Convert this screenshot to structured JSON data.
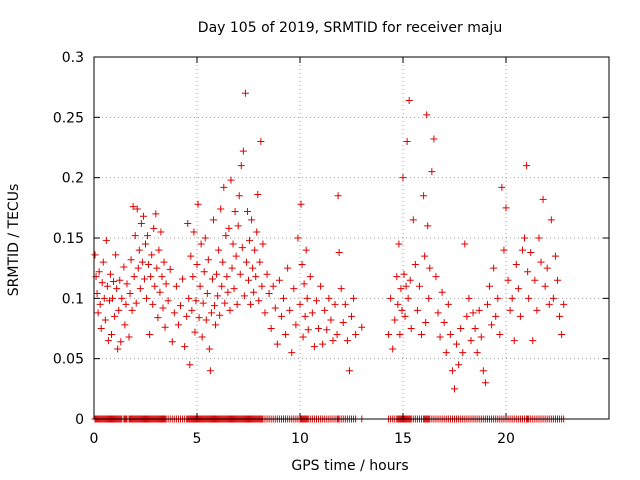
{
  "chart_data": {
    "type": "scatter",
    "title": "Day 105 of 2019, SRMTID for receiver maju",
    "xlabel": "GPS time / hours",
    "ylabel": "SRMTID / TECUs",
    "xlim": [
      0,
      25
    ],
    "ylim": [
      0,
      0.3
    ],
    "xticks": [
      0,
      5,
      10,
      15,
      20
    ],
    "xtick_labels": [
      "0",
      "5",
      "10",
      "15",
      "20"
    ],
    "yticks": [
      0,
      0.05,
      0.1,
      0.15,
      0.2,
      0.25,
      0.3
    ],
    "ytick_labels": [
      "0",
      "0.05",
      "0.1",
      "0.15",
      "0.2",
      "0.25",
      "0.3"
    ],
    "grid": true,
    "marker": "+",
    "series": [
      {
        "name": "SRMTID",
        "color": "#e00000",
        "points": [
          [
            0.05,
            0.136
          ],
          [
            0.1,
            0.118
          ],
          [
            0.15,
            0.104
          ],
          [
            0.2,
            0.088
          ],
          [
            0.25,
            0.122
          ],
          [
            0.3,
            0.095
          ],
          [
            0.35,
            0.075
          ],
          [
            0.4,
            0.113
          ],
          [
            0.45,
            0.13
          ],
          [
            0.5,
            0.1
          ],
          [
            0.55,
            0.082
          ],
          [
            0.6,
            0.148
          ],
          [
            0.65,
            0.11
          ],
          [
            0.7,
            0.065
          ],
          [
            0.75,
            0.098
          ],
          [
            0.8,
            0.12
          ],
          [
            0.85,
            0.07
          ],
          [
            0.9,
            0.1
          ],
          [
            0.95,
            0.114
          ],
          [
            1.0,
            0.085
          ],
          [
            1.05,
            0.136
          ],
          [
            1.1,
            0.108
          ],
          [
            1.15,
            0.058
          ],
          [
            1.2,
            0.09
          ],
          [
            1.25,
            0.115
          ],
          [
            1.3,
            0.064
          ],
          [
            1.35,
            0.1
          ],
          [
            1.45,
            0.126
          ],
          [
            1.5,
            0.078
          ],
          [
            1.55,
            0.095
          ],
          [
            1.6,
            0.112
          ],
          [
            1.7,
            0.068
          ],
          [
            1.75,
            0.104
          ],
          [
            1.8,
            0.132
          ],
          [
            1.85,
            0.09
          ],
          [
            1.9,
            0.176
          ],
          [
            1.95,
            0.118
          ],
          [
            2.0,
            0.152
          ],
          [
            2.05,
            0.096
          ],
          [
            2.1,
            0.174
          ],
          [
            2.15,
            0.125
          ],
          [
            2.2,
            0.14
          ],
          [
            2.25,
            0.108
          ],
          [
            2.3,
            0.162
          ],
          [
            2.35,
            0.13
          ],
          [
            2.4,
            0.168
          ],
          [
            2.45,
            0.116
          ],
          [
            2.5,
            0.145
          ],
          [
            2.55,
            0.1
          ],
          [
            2.6,
            0.152
          ],
          [
            2.65,
            0.128
          ],
          [
            2.7,
            0.07
          ],
          [
            2.75,
            0.118
          ],
          [
            2.8,
            0.136
          ],
          [
            2.85,
            0.095
          ],
          [
            2.9,
            0.158
          ],
          [
            2.95,
            0.11
          ],
          [
            3.0,
            0.17
          ],
          [
            3.05,
            0.125
          ],
          [
            3.1,
            0.084
          ],
          [
            3.15,
            0.14
          ],
          [
            3.2,
            0.105
          ],
          [
            3.25,
            0.155
          ],
          [
            3.3,
            0.118
          ],
          [
            3.35,
            0.092
          ],
          [
            3.4,
            0.13
          ],
          [
            3.45,
            0.076
          ],
          [
            3.5,
            0.112
          ],
          [
            3.6,
            0.098
          ],
          [
            3.7,
            0.124
          ],
          [
            3.8,
            0.064
          ],
          [
            3.9,
            0.088
          ],
          [
            4.0,
            0.11
          ],
          [
            4.1,
            0.078
          ],
          [
            4.2,
            0.094
          ],
          [
            4.3,
            0.116
          ],
          [
            4.4,
            0.06
          ],
          [
            4.5,
            0.085
          ],
          [
            4.55,
            0.162
          ],
          [
            4.6,
            0.1
          ],
          [
            4.65,
            0.045
          ],
          [
            4.7,
            0.135
          ],
          [
            4.75,
            0.09
          ],
          [
            4.8,
            0.118
          ],
          [
            4.85,
            0.155
          ],
          [
            4.9,
            0.072
          ],
          [
            4.95,
            0.098
          ],
          [
            5.0,
            0.128
          ],
          [
            5.05,
            0.178
          ],
          [
            5.1,
            0.084
          ],
          [
            5.15,
            0.11
          ],
          [
            5.2,
            0.145
          ],
          [
            5.25,
            0.068
          ],
          [
            5.3,
            0.096
          ],
          [
            5.35,
            0.122
          ],
          [
            5.4,
            0.15
          ],
          [
            5.45,
            0.082
          ],
          [
            5.5,
            0.104
          ],
          [
            5.55,
            0.132
          ],
          [
            5.6,
            0.058
          ],
          [
            5.65,
            0.04
          ],
          [
            5.7,
            0.088
          ],
          [
            5.75,
            0.116
          ],
          [
            5.8,
            0.165
          ],
          [
            5.85,
            0.094
          ],
          [
            5.9,
            0.078
          ],
          [
            5.95,
            0.12
          ],
          [
            6.0,
            0.102
          ],
          [
            6.05,
            0.14
          ],
          [
            6.1,
            0.086
          ],
          [
            6.15,
            0.174
          ],
          [
            6.2,
            0.11
          ],
          [
            6.25,
            0.13
          ],
          [
            6.3,
            0.192
          ],
          [
            6.35,
            0.096
          ],
          [
            6.4,
            0.152
          ],
          [
            6.45,
            0.118
          ],
          [
            6.5,
            0.105
          ],
          [
            6.55,
            0.158
          ],
          [
            6.6,
            0.09
          ],
          [
            6.65,
            0.198
          ],
          [
            6.7,
            0.125
          ],
          [
            6.75,
            0.145
          ],
          [
            6.8,
            0.108
          ],
          [
            6.85,
            0.172
          ],
          [
            6.9,
            0.135
          ],
          [
            6.95,
            0.095
          ],
          [
            7.0,
            0.16
          ],
          [
            7.05,
            0.185
          ],
          [
            7.1,
            0.12
          ],
          [
            7.15,
            0.21
          ],
          [
            7.2,
            0.142
          ],
          [
            7.25,
            0.222
          ],
          [
            7.3,
            0.102
          ],
          [
            7.35,
            0.27
          ],
          [
            7.4,
            0.13
          ],
          [
            7.45,
            0.172
          ],
          [
            7.5,
            0.115
          ],
          [
            7.55,
            0.148
          ],
          [
            7.6,
            0.095
          ],
          [
            7.65,
            0.165
          ],
          [
            7.7,
            0.125
          ],
          [
            7.75,
            0.105
          ],
          [
            7.8,
            0.14
          ],
          [
            7.85,
            0.118
          ],
          [
            7.9,
            0.155
          ],
          [
            7.95,
            0.186
          ],
          [
            8.0,
            0.098
          ],
          [
            8.05,
            0.13
          ],
          [
            8.1,
            0.23
          ],
          [
            8.15,
            0.11
          ],
          [
            8.2,
            0.145
          ],
          [
            8.3,
            0.088
          ],
          [
            8.4,
            0.12
          ],
          [
            8.5,
            0.104
          ],
          [
            8.6,
            0.075
          ],
          [
            8.7,
            0.11
          ],
          [
            8.8,
            0.092
          ],
          [
            8.9,
            0.062
          ],
          [
            9.0,
            0.115
          ],
          [
            9.1,
            0.085
          ],
          [
            9.2,
            0.1
          ],
          [
            9.3,
            0.07
          ],
          [
            9.4,
            0.125
          ],
          [
            9.5,
            0.09
          ],
          [
            9.6,
            0.055
          ],
          [
            9.7,
            0.108
          ],
          [
            9.8,
            0.078
          ],
          [
            9.9,
            0.15
          ],
          [
            10.0,
            0.095
          ],
          [
            10.05,
            0.178
          ],
          [
            10.1,
            0.128
          ],
          [
            10.15,
            0.068
          ],
          [
            10.2,
            0.112
          ],
          [
            10.25,
            0.085
          ],
          [
            10.3,
            0.14
          ],
          [
            10.35,
            0.1
          ],
          [
            10.4,
            0.074
          ],
          [
            10.5,
            0.118
          ],
          [
            10.6,
            0.088
          ],
          [
            10.7,
            0.06
          ],
          [
            10.8,
            0.098
          ],
          [
            10.9,
            0.075
          ],
          [
            11.0,
            0.11
          ],
          [
            11.1,
            0.062
          ],
          [
            11.2,
            0.09
          ],
          [
            11.3,
            0.074
          ],
          [
            11.4,
            0.1
          ],
          [
            11.5,
            0.082
          ],
          [
            11.6,
            0.065
          ],
          [
            11.7,
            0.095
          ],
          [
            11.8,
            0.07
          ],
          [
            11.85,
            0.185
          ],
          [
            11.9,
            0.138
          ],
          [
            12.0,
            0.108
          ],
          [
            12.1,
            0.08
          ],
          [
            12.2,
            0.095
          ],
          [
            12.3,
            0.065
          ],
          [
            12.4,
            0.04
          ],
          [
            12.5,
            0.085
          ],
          [
            12.6,
            0.1
          ],
          [
            12.7,
            0.07
          ],
          [
            13.0,
            0.076
          ],
          [
            14.3,
            0.07
          ],
          [
            14.4,
            0.1
          ],
          [
            14.5,
            0.058
          ],
          [
            14.6,
            0.082
          ],
          [
            14.7,
            0.118
          ],
          [
            14.75,
            0.095
          ],
          [
            14.8,
            0.145
          ],
          [
            14.85,
            0.07
          ],
          [
            14.9,
            0.108
          ],
          [
            14.95,
            0.09
          ],
          [
            15.0,
            0.2
          ],
          [
            15.05,
            0.12
          ],
          [
            15.1,
            0.085
          ],
          [
            15.15,
            0.11
          ],
          [
            15.2,
            0.23
          ],
          [
            15.25,
            0.1
          ],
          [
            15.3,
            0.264
          ],
          [
            15.35,
            0.115
          ],
          [
            15.4,
            0.075
          ],
          [
            15.5,
            0.165
          ],
          [
            15.6,
            0.128
          ],
          [
            15.7,
            0.09
          ],
          [
            15.8,
            0.11
          ],
          [
            15.9,
            0.07
          ],
          [
            16.0,
            0.185
          ],
          [
            16.05,
            0.135
          ],
          [
            16.1,
            0.08
          ],
          [
            16.15,
            0.252
          ],
          [
            16.2,
            0.16
          ],
          [
            16.25,
            0.1
          ],
          [
            16.3,
            0.125
          ],
          [
            16.4,
            0.205
          ],
          [
            16.5,
            0.232
          ],
          [
            16.6,
            0.118
          ],
          [
            16.7,
            0.088
          ],
          [
            16.8,
            0.068
          ],
          [
            16.9,
            0.105
          ],
          [
            17.0,
            0.08
          ],
          [
            17.1,
            0.055
          ],
          [
            17.2,
            0.095
          ],
          [
            17.3,
            0.07
          ],
          [
            17.4,
            0.04
          ],
          [
            17.5,
            0.025
          ],
          [
            17.6,
            0.062
          ],
          [
            17.7,
            0.045
          ],
          [
            17.8,
            0.075
          ],
          [
            17.9,
            0.055
          ],
          [
            18.0,
            0.145
          ],
          [
            18.1,
            0.085
          ],
          [
            18.2,
            0.1
          ],
          [
            18.3,
            0.065
          ],
          [
            18.4,
            0.088
          ],
          [
            18.5,
            0.075
          ],
          [
            18.6,
            0.055
          ],
          [
            18.7,
            0.09
          ],
          [
            18.8,
            0.068
          ],
          [
            18.9,
            0.04
          ],
          [
            19.0,
            0.03
          ],
          [
            19.1,
            0.095
          ],
          [
            19.2,
            0.11
          ],
          [
            19.3,
            0.078
          ],
          [
            19.4,
            0.125
          ],
          [
            19.5,
            0.085
          ],
          [
            19.6,
            0.1
          ],
          [
            19.7,
            0.07
          ],
          [
            19.8,
            0.192
          ],
          [
            19.9,
            0.14
          ],
          [
            20.0,
            0.175
          ],
          [
            20.1,
            0.115
          ],
          [
            20.2,
            0.09
          ],
          [
            20.3,
            0.1
          ],
          [
            20.4,
            0.065
          ],
          [
            20.5,
            0.128
          ],
          [
            20.6,
            0.108
          ],
          [
            20.7,
            0.085
          ],
          [
            20.8,
            0.14
          ],
          [
            20.9,
            0.15
          ],
          [
            21.0,
            0.21
          ],
          [
            21.05,
            0.122
          ],
          [
            21.1,
            0.1
          ],
          [
            21.2,
            0.138
          ],
          [
            21.3,
            0.065
          ],
          [
            21.4,
            0.115
          ],
          [
            21.5,
            0.09
          ],
          [
            21.6,
            0.15
          ],
          [
            21.7,
            0.13
          ],
          [
            21.8,
            0.182
          ],
          [
            21.9,
            0.11
          ],
          [
            22.0,
            0.125
          ],
          [
            22.1,
            0.095
          ],
          [
            22.2,
            0.165
          ],
          [
            22.3,
            0.1
          ],
          [
            22.4,
            0.135
          ],
          [
            22.5,
            0.115
          ],
          [
            22.6,
            0.085
          ],
          [
            22.7,
            0.07
          ],
          [
            22.8,
            0.095
          ]
        ]
      }
    ]
  }
}
